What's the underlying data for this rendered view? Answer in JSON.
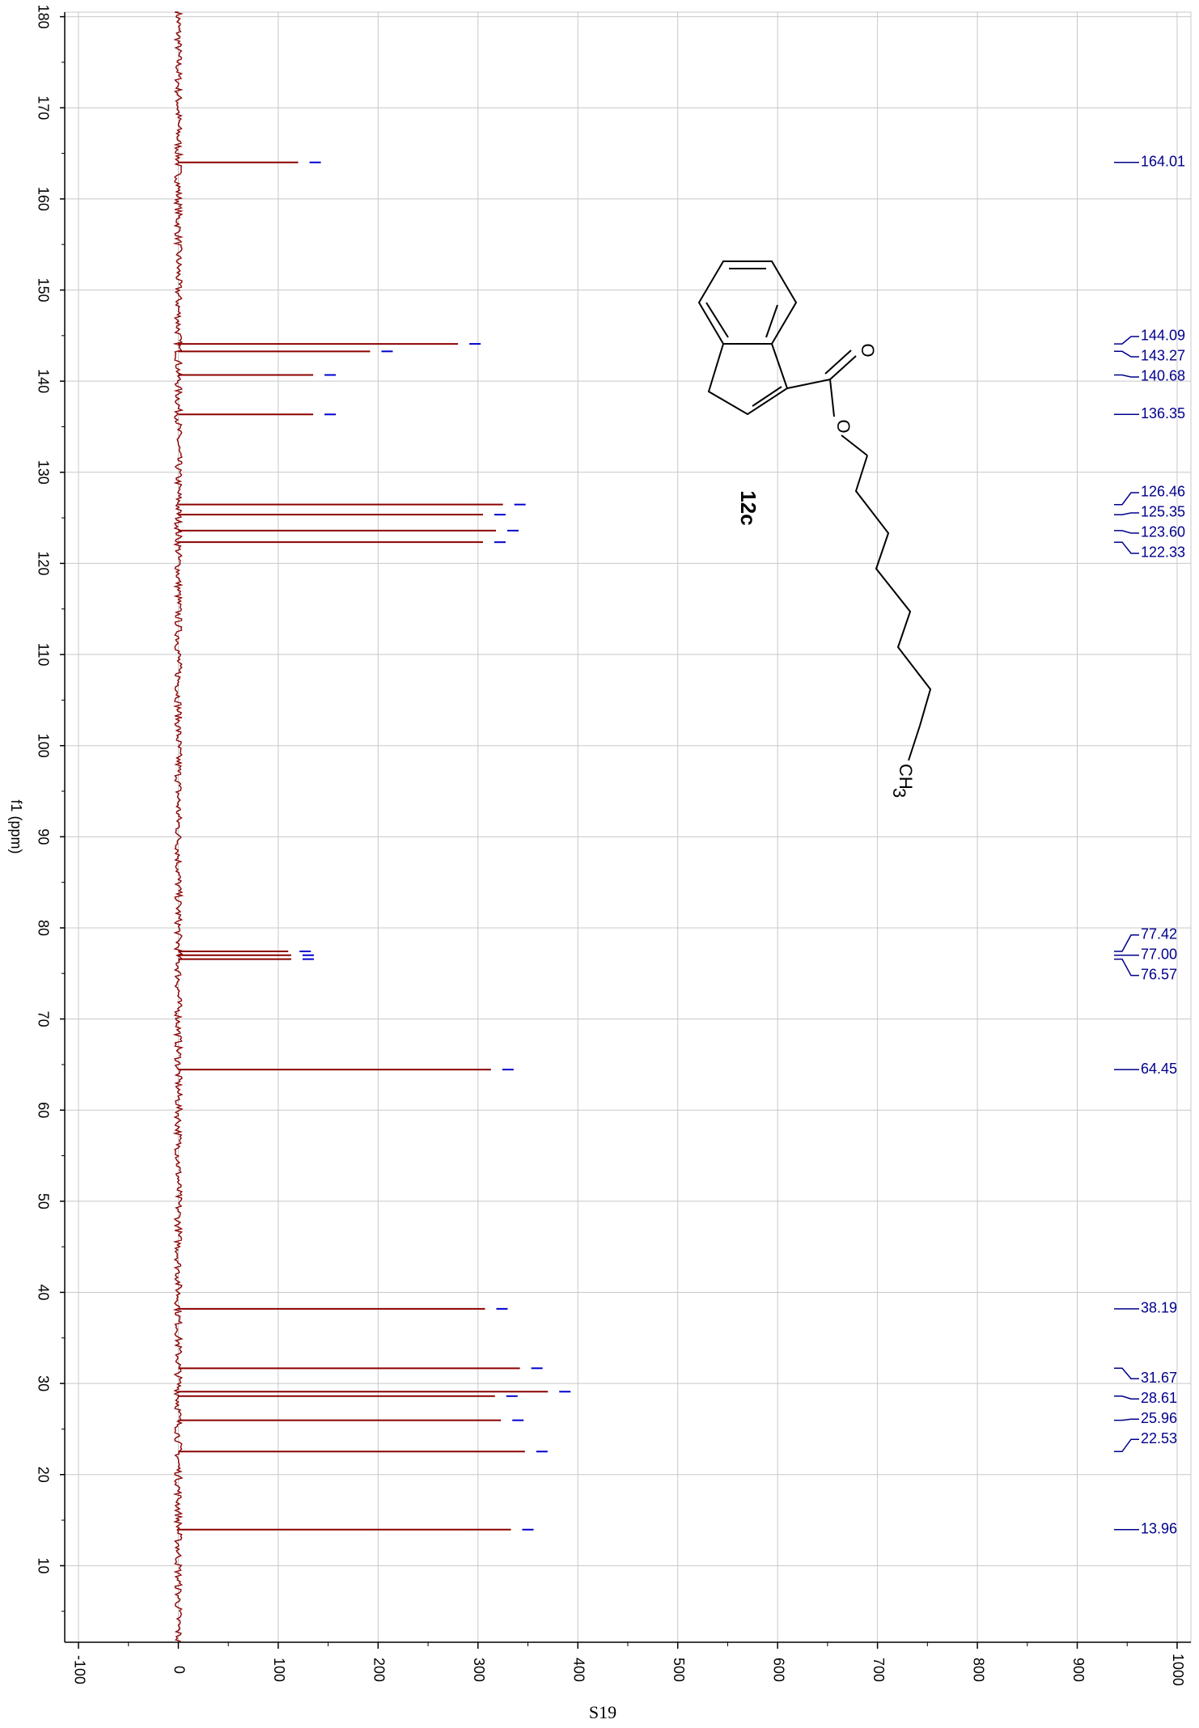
{
  "chart_data": {
    "type": "line",
    "title": "",
    "ylabel": "f1 (ppm)",
    "xlabel": "",
    "ylim": [
      180,
      2
    ],
    "xlim": [
      -100,
      1000
    ],
    "grid": true,
    "y_ticks": [
      "180",
      "170",
      "160",
      "150",
      "140",
      "130",
      "120",
      "110",
      "100",
      "90",
      "80",
      "70",
      "60",
      "50",
      "40",
      "30",
      "20",
      "10"
    ],
    "x_ticks": [
      "-100",
      "0",
      "100",
      "200",
      "300",
      "400",
      "500",
      "600",
      "700",
      "800",
      "900",
      "1000"
    ],
    "series": [
      {
        "values": [
          {
            "ppm": 164.01,
            "intensity": 120
          },
          {
            "ppm": 144.09,
            "intensity": 280
          },
          {
            "ppm": 143.27,
            "intensity": 192
          },
          {
            "ppm": 140.68,
            "intensity": 135
          },
          {
            "ppm": 136.35,
            "intensity": 135
          },
          {
            "ppm": 126.46,
            "intensity": 325
          },
          {
            "ppm": 125.35,
            "intensity": 305
          },
          {
            "ppm": 123.6,
            "intensity": 318
          },
          {
            "ppm": 122.33,
            "intensity": 305
          },
          {
            "ppm": 77.42,
            "intensity": 110
          },
          {
            "ppm": 77.0,
            "intensity": 113
          },
          {
            "ppm": 76.57,
            "intensity": 113
          },
          {
            "ppm": 64.45,
            "intensity": 313
          },
          {
            "ppm": 38.19,
            "intensity": 307
          },
          {
            "ppm": 31.67,
            "intensity": 342
          },
          {
            "ppm": 29.1,
            "intensity": 370
          },
          {
            "ppm": 28.61,
            "intensity": 317
          },
          {
            "ppm": 25.96,
            "intensity": 323
          },
          {
            "ppm": 22.53,
            "intensity": 347
          },
          {
            "ppm": 13.96,
            "intensity": 333
          }
        ]
      }
    ],
    "peak_labels": [
      {
        "ppm": 164.01,
        "text": "164.01"
      },
      {
        "ppm": 144.09,
        "text": "144.09"
      },
      {
        "ppm": 143.27,
        "text": "143.27"
      },
      {
        "ppm": 140.68,
        "text": "140.68"
      },
      {
        "ppm": 136.35,
        "text": "136.35"
      },
      {
        "ppm": 126.46,
        "text": "126.46"
      },
      {
        "ppm": 125.35,
        "text": "125.35"
      },
      {
        "ppm": 123.6,
        "text": "123.60"
      },
      {
        "ppm": 122.33,
        "text": "122.33"
      },
      {
        "ppm": 77.42,
        "text": "77.42"
      },
      {
        "ppm": 77.0,
        "text": "77.00"
      },
      {
        "ppm": 76.57,
        "text": "76.57"
      },
      {
        "ppm": 64.45,
        "text": "64.45"
      },
      {
        "ppm": 38.19,
        "text": "38.19"
      },
      {
        "ppm": 31.67,
        "text": "31.67"
      },
      {
        "ppm": 28.61,
        "text": "28.61"
      },
      {
        "ppm": 25.96,
        "text": "25.96"
      },
      {
        "ppm": 22.53,
        "text": "22.53"
      },
      {
        "ppm": 13.96,
        "text": "13.96"
      }
    ],
    "compound_label": "12c",
    "structure_atoms": {
      "carbonyl_o": "O",
      "ester_o": "O",
      "methyl": "CH",
      "methyl_sub": "3"
    },
    "page_label": "S19",
    "colors": {
      "spectrum": "#8b0000",
      "peak_label": "#00008b",
      "grid": "#c8c8c8",
      "integral_tick": "#0000cd"
    }
  }
}
